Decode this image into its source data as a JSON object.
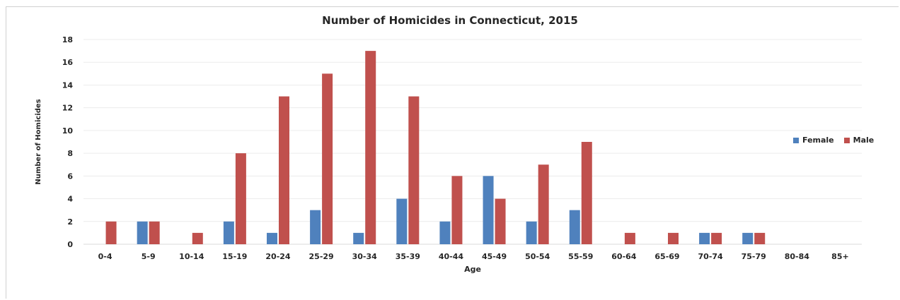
{
  "chart_data": {
    "type": "bar",
    "title": "Number of Homicides in Connecticut, 2015",
    "xlabel": "Age",
    "ylabel": "Number of Homicides",
    "categories": [
      "0-4",
      "5-9",
      "10-14",
      "15-19",
      "20-24",
      "25-29",
      "30-34",
      "35-39",
      "40-44",
      "45-49",
      "50-54",
      "55-59",
      "60-64",
      "65-69",
      "70-74",
      "75-79",
      "80-84",
      "85+"
    ],
    "series": [
      {
        "name": "Female",
        "color": "#4f81bd",
        "values": [
          0,
          2,
          0,
          2,
          1,
          3,
          1,
          4,
          2,
          6,
          2,
          3,
          0,
          0,
          1,
          1,
          0,
          0
        ]
      },
      {
        "name": "Male",
        "color": "#c0504d",
        "values": [
          2,
          2,
          1,
          8,
          13,
          15,
          17,
          13,
          6,
          4,
          7,
          9,
          1,
          1,
          1,
          1,
          0,
          0
        ]
      }
    ],
    "ylim": [
      0,
      18
    ],
    "yticks": [
      "0",
      "2",
      "4",
      "6",
      "8",
      "10",
      "12",
      "14",
      "16",
      "18"
    ],
    "grid": true,
    "legend_position": "right"
  }
}
